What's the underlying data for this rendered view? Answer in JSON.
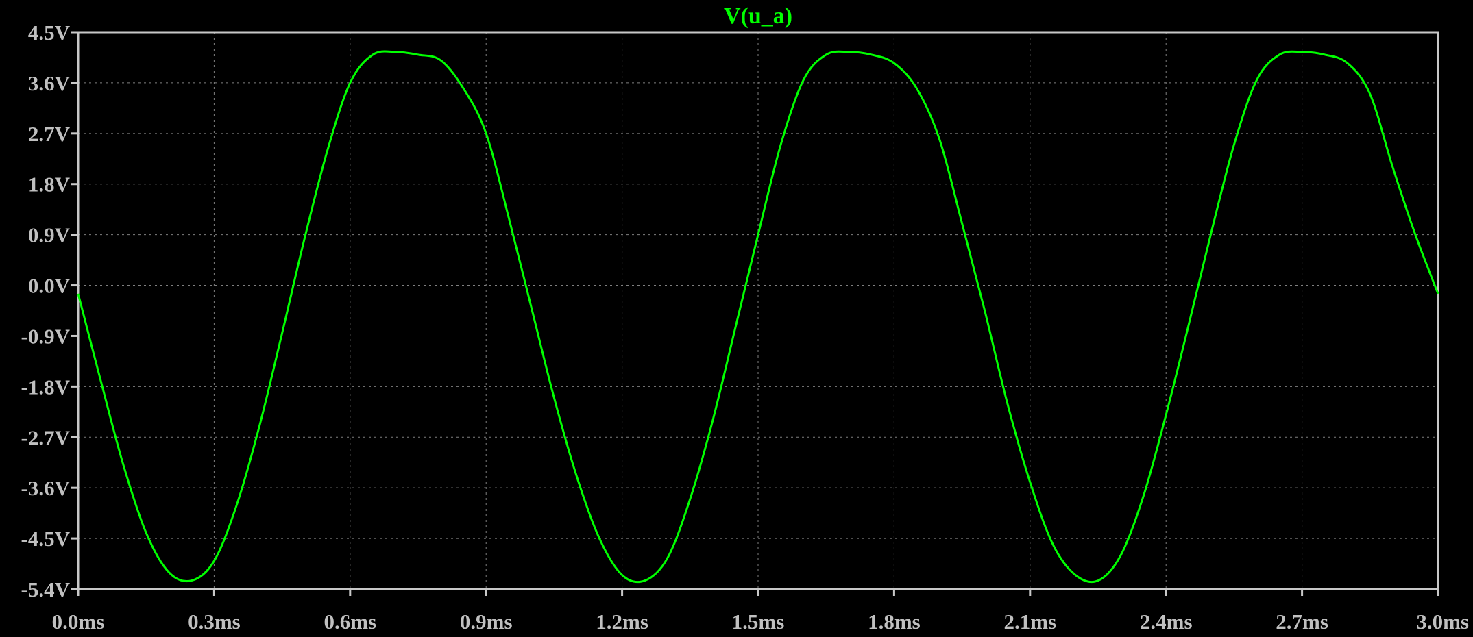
{
  "chart_data": {
    "type": "line",
    "title": "V(u_a)",
    "xlabel": "",
    "ylabel": "",
    "xlim": [
      0.0,
      3.0
    ],
    "ylim": [
      -5.4,
      4.5
    ],
    "x_unit": "ms",
    "y_unit": "V",
    "grid": true,
    "x_ticks": [
      0.0,
      0.3,
      0.6,
      0.9,
      1.2,
      1.5,
      1.8,
      2.1,
      2.4,
      2.7,
      3.0
    ],
    "x_tick_labels": [
      "0.0ms",
      "0.3ms",
      "0.6ms",
      "0.9ms",
      "1.2ms",
      "1.5ms",
      "1.8ms",
      "2.1ms",
      "2.4ms",
      "2.7ms",
      "3.0ms"
    ],
    "y_ticks": [
      4.5,
      3.6,
      2.7,
      1.8,
      0.9,
      0.0,
      -0.9,
      -1.8,
      -2.7,
      -3.6,
      -4.5,
      -5.4
    ],
    "y_tick_labels": [
      "4.5V",
      "3.6V",
      "2.7V",
      "1.8V",
      "0.9V",
      "0.0V",
      "-0.9V",
      "-1.8V",
      "-2.7V",
      "-3.6V",
      "-4.5V",
      "-5.4V"
    ],
    "series": [
      {
        "name": "V(u_a)",
        "color": "#00ff00",
        "x": [
          0.0,
          0.05,
          0.1,
          0.15,
          0.2,
          0.25,
          0.3,
          0.35,
          0.4,
          0.45,
          0.5,
          0.55,
          0.6,
          0.65,
          0.7,
          0.75,
          0.8,
          0.85,
          0.9,
          0.95,
          1.0,
          1.05,
          1.1,
          1.15,
          1.2,
          1.25,
          1.3,
          1.35,
          1.4,
          1.45,
          1.5,
          1.55,
          1.6,
          1.65,
          1.7,
          1.75,
          1.8,
          1.85,
          1.9,
          1.95,
          2.0,
          2.05,
          2.1,
          2.15,
          2.2,
          2.25,
          2.3,
          2.35,
          2.4,
          2.45,
          2.5,
          2.55,
          2.6,
          2.65,
          2.7,
          2.75,
          2.8,
          2.85,
          2.9,
          2.95,
          3.0
        ],
        "y": [
          -0.15,
          -1.7,
          -3.2,
          -4.4,
          -5.1,
          -5.25,
          -4.9,
          -3.9,
          -2.5,
          -0.85,
          0.85,
          2.4,
          3.6,
          4.1,
          4.15,
          4.1,
          4.0,
          3.5,
          2.7,
          1.2,
          -0.4,
          -2.0,
          -3.4,
          -4.5,
          -5.15,
          -5.25,
          -4.85,
          -3.8,
          -2.4,
          -0.75,
          0.9,
          2.5,
          3.65,
          4.1,
          4.15,
          4.1,
          3.95,
          3.5,
          2.6,
          1.1,
          -0.45,
          -2.1,
          -3.5,
          -4.6,
          -5.15,
          -5.25,
          -4.8,
          -3.75,
          -2.3,
          -0.7,
          0.95,
          2.5,
          3.65,
          4.1,
          4.15,
          4.1,
          3.95,
          3.4,
          2.1,
          0.9,
          -0.15
        ]
      }
    ]
  }
}
